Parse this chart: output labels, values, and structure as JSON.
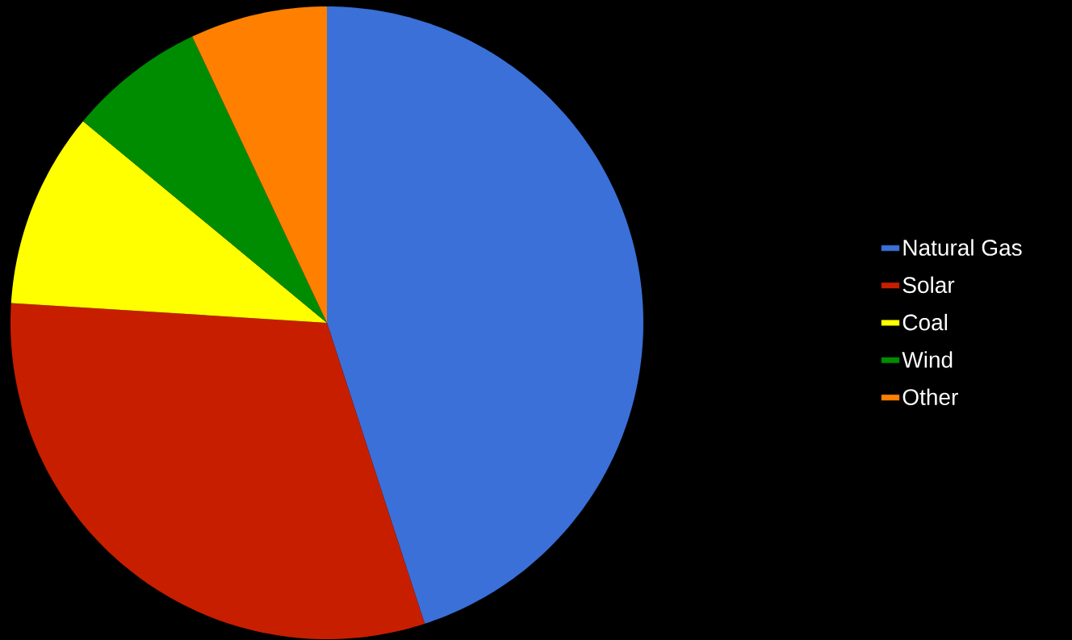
{
  "chart_data": {
    "type": "pie",
    "categories": [
      "Natural Gas",
      "Solar",
      "Coal",
      "Wind",
      "Other"
    ],
    "values": [
      45,
      31,
      10,
      7,
      7
    ],
    "colors": [
      "#3a70d8",
      "#c81e00",
      "#ffff00",
      "#008c00",
      "#ff8000"
    ],
    "legend": "right"
  }
}
